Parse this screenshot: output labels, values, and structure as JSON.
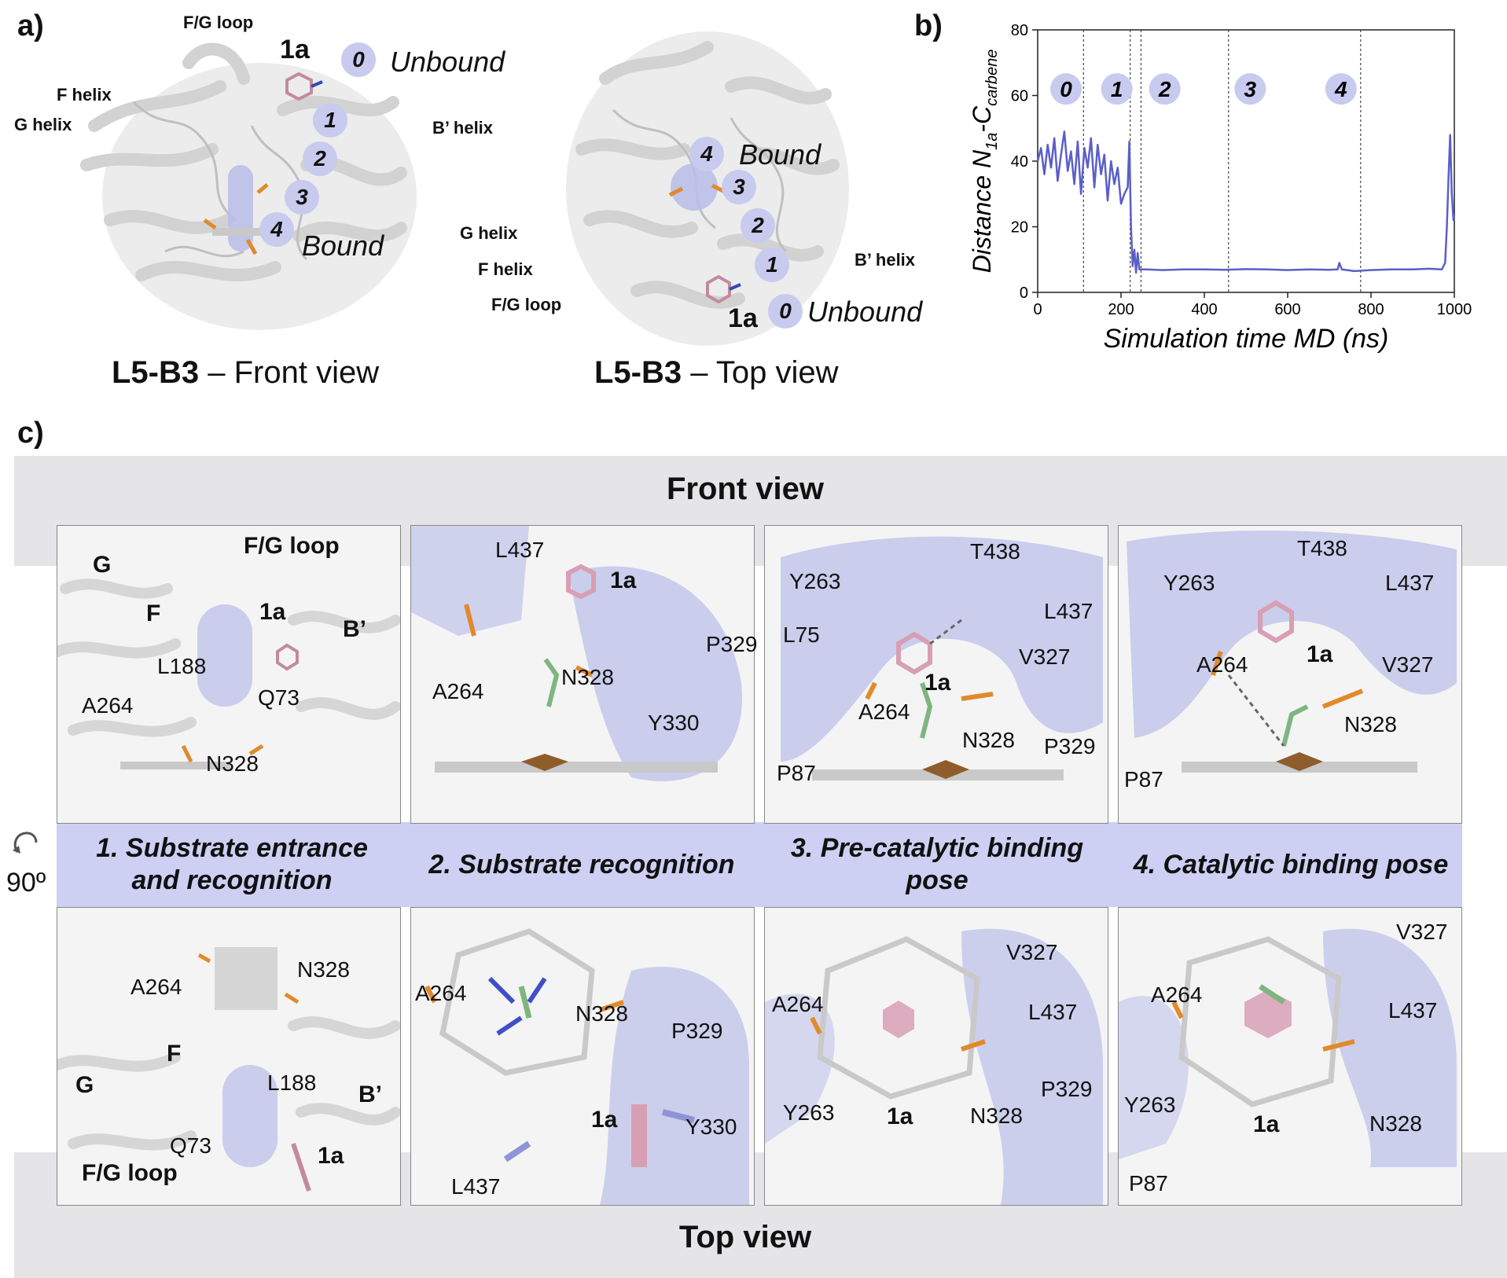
{
  "panel_a": {
    "letter": "a)",
    "front": {
      "ligand": "1a",
      "unbound": "Unbound",
      "bound": "Bound",
      "steps": [
        "0",
        "1",
        "2",
        "3",
        "4"
      ],
      "fg_loop": "F/G loop",
      "f_helix": "F helix",
      "g_helix": "G helix",
      "b_helix": "B’ helix",
      "caption_bold": "L5-B3",
      "caption_rest": " – Front view"
    },
    "top": {
      "ligand": "1a",
      "unbound": "Unbound",
      "bound": "Bound",
      "steps": [
        "0",
        "1",
        "2",
        "3",
        "4"
      ],
      "g_helix": "G helix",
      "f_helix": "F helix",
      "fg_loop": "F/G loop",
      "b_helix": "B’ helix",
      "caption_bold": "L5-B3",
      "caption_rest": " – Top view"
    }
  },
  "panel_b": {
    "letter": "b)",
    "stage_labels": [
      "0",
      "1",
      "2",
      "3",
      "4"
    ],
    "colors": {
      "line": "#5b5fc7",
      "badge": "#c8cbee"
    }
  },
  "chart_data": {
    "type": "line",
    "xlabel": "Simulation time MD (ns)",
    "ylabel_main": "Distance N",
    "ylabel_sub1": "1a",
    "ylabel_mid": "-C",
    "ylabel_sub2": "carbene",
    "xlim": [
      0,
      1000
    ],
    "ylim": [
      0,
      80
    ],
    "xticks": [
      0,
      200,
      400,
      600,
      800,
      1000
    ],
    "yticks": [
      0,
      20,
      40,
      60,
      80
    ],
    "stage_boundaries": [
      110,
      222,
      248,
      458,
      775
    ],
    "stage_label_x": [
      68,
      190,
      305,
      510,
      728
    ],
    "series": [
      {
        "x": [
          0,
          8,
          16,
          24,
          32,
          40,
          48,
          56,
          64,
          72,
          80,
          88,
          96,
          104,
          112,
          120,
          128,
          136,
          144,
          152,
          160,
          168,
          176,
          184,
          192,
          200,
          208,
          216,
          220,
          224,
          228,
          232,
          236,
          240,
          244,
          250,
          260,
          300,
          350,
          400,
          450,
          500,
          550,
          600,
          650,
          700,
          720,
          724,
          730,
          760,
          800,
          850,
          900,
          940,
          970,
          978,
          982,
          986,
          990,
          994,
          998,
          1000
        ],
        "y": [
          40,
          44,
          36,
          45,
          38,
          47,
          34,
          42,
          49,
          37,
          43,
          33,
          46,
          30,
          44,
          38,
          47,
          32,
          45,
          36,
          42,
          28,
          40,
          33,
          38,
          27,
          30,
          32,
          46,
          20,
          8,
          13,
          6,
          12,
          7,
          7,
          7,
          6.8,
          7,
          7,
          6.9,
          7.1,
          7,
          6.8,
          7,
          6.9,
          7,
          9,
          7,
          6.5,
          6.8,
          7,
          7,
          7.2,
          7,
          9,
          20,
          35,
          48,
          30,
          22,
          24
        ]
      }
    ]
  },
  "panel_c": {
    "letter": "c)",
    "front_view": "Front view",
    "top_view": "Top view",
    "rotate_label": "90º",
    "stages": [
      "1. Substrate entrance and recognition",
      "2. Substrate recognition",
      "3. Pre-catalytic binding pose",
      "4. Catalytic binding pose"
    ],
    "front_boxes": [
      {
        "labels": [
          "G",
          "F",
          "F/G loop",
          "1a",
          "B’",
          "L188",
          "Q73",
          "A264",
          "N328"
        ]
      },
      {
        "labels": [
          "L437",
          "1a",
          "P329",
          "A264",
          "N328",
          "Y330"
        ]
      },
      {
        "labels": [
          "T438",
          "Y263",
          "L437",
          "L75",
          "V327",
          "1a",
          "A264",
          "N328",
          "P329",
          "P87"
        ]
      },
      {
        "labels": [
          "T438",
          "Y263",
          "L437",
          "1a",
          "A264",
          "V327",
          "N328",
          "P87"
        ]
      }
    ],
    "top_boxes": [
      {
        "labels": [
          "A264",
          "N328",
          "F",
          "G",
          "L188",
          "B’",
          "Q73",
          "1a",
          "F/G loop"
        ]
      },
      {
        "labels": [
          "A264",
          "N328",
          "P329",
          "1a",
          "Y330",
          "L437"
        ]
      },
      {
        "labels": [
          "V327",
          "A264",
          "L437",
          "P329",
          "Y263",
          "1a",
          "N328"
        ]
      },
      {
        "labels": [
          "V327",
          "A264",
          "L437",
          "Y263",
          "1a",
          "N328",
          "P87"
        ]
      }
    ]
  }
}
